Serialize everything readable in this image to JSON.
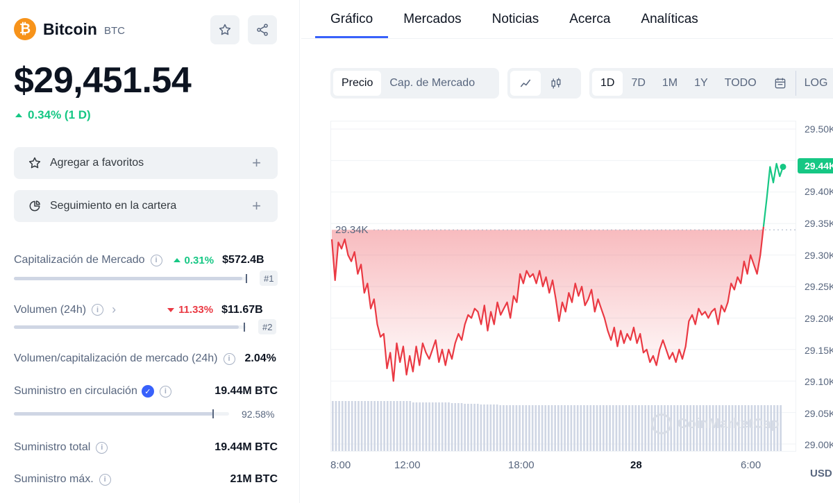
{
  "coin": {
    "name": "Bitcoin",
    "symbol": "BTC",
    "logo_glyph": "₿",
    "price": "$29,451.54",
    "change": "0.34% (1 D)"
  },
  "actions": {
    "favorites": "Agregar a favoritos",
    "portfolio": "Seguimiento en la cartera"
  },
  "stats": {
    "market_cap": {
      "label": "Capitalización de Mercado",
      "pct": "0.31%",
      "value": "$572.4B",
      "rank": "#1",
      "bar_fill": 0.98
    },
    "volume": {
      "label": "Volumen (24h)",
      "pct": "11.33%",
      "value": "$11.67B",
      "rank": "#2",
      "bar_fill": 0.97
    },
    "vol_cap": {
      "label": "Volumen/capitalización de mercado (24h)",
      "value": "2.04%"
    },
    "circulating": {
      "label": "Suministro en circulación",
      "value": "19.44M BTC",
      "pct": "92.58%",
      "bar_fill": 0.9258
    },
    "total": {
      "label": "Suministro total",
      "value": "19.44M BTC"
    },
    "max": {
      "label": "Suministro máx.",
      "value": "21M BTC"
    }
  },
  "tabs": [
    "Gráfico",
    "Mercados",
    "Noticias",
    "Acerca",
    "Analíticas"
  ],
  "toolbar": {
    "type_options": [
      "Precio",
      "Cap. de Mercado"
    ],
    "ranges": [
      "1D",
      "7D",
      "1M",
      "1Y",
      "TODO"
    ],
    "log_label": "LOG"
  },
  "chart_data": {
    "type": "line",
    "title": "",
    "xlabel": "",
    "ylabel": "USD",
    "x_ticks": [
      "8:00",
      "12:00",
      "18:00",
      "28",
      "6:00"
    ],
    "y_ticks": [
      "29.50K",
      "29.45K",
      "29.40K",
      "29.35K",
      "29.30K",
      "29.25K",
      "29.20K",
      "29.15K",
      "29.10K",
      "29.05K",
      "29.00K"
    ],
    "ylim": [
      29000,
      29500
    ],
    "reference_value": "29.34K",
    "current_value": "29.44K",
    "series": [
      {
        "values": [
          29325,
          29260,
          29320,
          29310,
          29325,
          29300,
          29290,
          29305,
          29270,
          29285,
          29240,
          29255,
          29215,
          29230,
          29190,
          29170,
          29175,
          29120,
          29145,
          29100,
          29160,
          29130,
          29155,
          29110,
          29140,
          29115,
          29155,
          29125,
          29160,
          29145,
          29135,
          29150,
          29165,
          29130,
          29150,
          29125,
          29150,
          29135,
          29160,
          29175,
          29165,
          29190,
          29205,
          29200,
          29215,
          29210,
          29190,
          29220,
          29180,
          29210,
          29190,
          29225,
          29205,
          29215,
          29225,
          29200,
          29235,
          29225,
          29270,
          29255,
          29275,
          29265,
          29270,
          29255,
          29275,
          29250,
          29265,
          29240,
          29260,
          29230,
          29195,
          29225,
          29210,
          29240,
          29225,
          29255,
          29235,
          29250,
          29220,
          29230,
          29245,
          29210,
          29230,
          29215,
          29200,
          29180,
          29165,
          29185,
          29155,
          29180,
          29160,
          29175,
          29165,
          29185,
          29160,
          29175,
          29145,
          29150,
          29130,
          29140,
          29125,
          29150,
          29165,
          29150,
          29135,
          29145,
          29130,
          29150,
          29135,
          29155,
          29195,
          29205,
          29190,
          29215,
          29205,
          29210,
          29200,
          29210,
          29215,
          29190,
          29220,
          29210,
          29225,
          29255,
          29245,
          29265,
          29255,
          29290,
          29270,
          29300,
          29285,
          29270,
          29300,
          29345,
          29390,
          29440,
          29415,
          29445,
          29425,
          29440
        ],
        "volume": [
          72,
          72,
          72,
          72,
          72,
          72,
          72,
          72,
          72,
          72,
          72,
          72,
          72,
          72,
          72,
          72,
          72,
          72,
          72,
          72,
          72,
          72,
          72,
          72,
          72,
          70,
          70,
          70,
          70,
          70,
          70,
          70,
          70,
          70,
          70,
          70,
          70,
          69,
          69,
          69,
          69,
          68,
          68,
          68,
          68,
          68,
          67,
          67,
          67,
          67,
          67,
          67,
          66,
          66,
          66,
          66,
          66,
          66,
          66,
          66,
          66,
          66,
          66,
          66,
          66,
          66,
          66,
          66,
          66,
          66,
          66,
          66,
          66,
          66,
          66,
          66,
          66,
          66,
          66,
          66,
          66,
          66,
          66,
          66,
          66,
          66,
          66,
          66,
          66,
          66,
          66,
          66,
          66,
          66,
          66,
          66,
          66,
          66,
          66,
          66,
          66,
          66,
          66,
          66,
          66,
          66,
          66,
          66,
          66,
          66,
          66,
          66,
          66,
          66,
          66,
          66,
          66,
          66,
          66,
          66,
          66,
          66,
          66,
          66,
          66,
          66,
          66,
          66,
          66,
          66,
          66,
          66,
          66,
          66,
          66,
          66,
          66,
          66,
          66,
          66
        ]
      }
    ],
    "colors": {
      "line_down": "#ea3943",
      "line_up": "#16c784",
      "volume": "#cfd6e4",
      "grid": "#eff2f5"
    }
  },
  "watermark": "CoinMarketCap",
  "currency": "USD",
  "icons": {
    "star": "star-icon",
    "share": "share-icon",
    "portfolio": "pie-chart-icon",
    "line": "line-chart-icon",
    "candle": "candlestick-icon",
    "calendar": "calendar-icon"
  }
}
